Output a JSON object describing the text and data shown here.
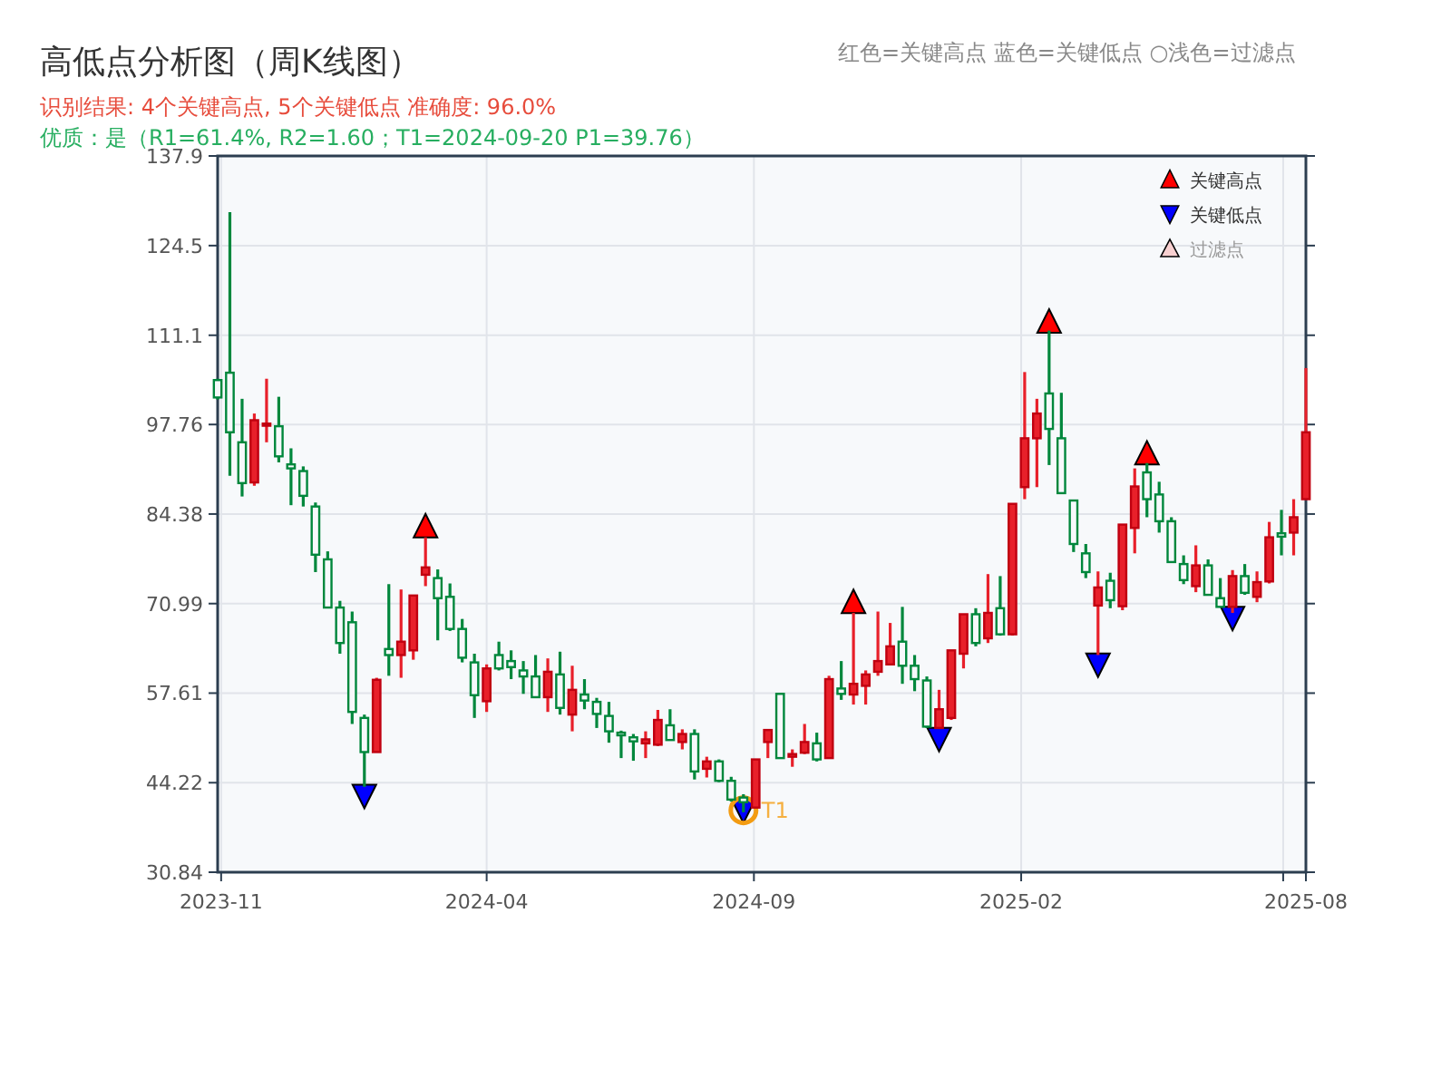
{
  "chart_data": {
    "type": "candlestick",
    "title": "高低点分析图（周K线图）",
    "subtitle": "识别结果: 4个关键高点, 5个关键低点  准确度: 96.0%",
    "annotations": [
      "优质：是（R1=61.4%, R2=1.60；T1=2024-09-20 P1=39.76）",
      "红色=关键高点     蓝色=关键低点     ○浅色=过滤点",
      "过滤点",
      {
        "text": "T1",
        "x": "2024-08-26",
        "y": 40.1
      }
    ],
    "x": [
      "2023-10-30",
      "2023-11-06",
      "2023-11-13",
      "2023-11-20",
      "2023-11-27",
      "2023-12-04",
      "2023-12-11",
      "2023-12-18",
      "2023-12-25",
      "2024-01-01",
      "2024-01-08",
      "2024-01-15",
      "2024-01-22",
      "2024-01-29",
      "2024-02-05",
      "2024-02-12",
      "2024-02-19",
      "2024-02-26",
      "2024-03-04",
      "2024-03-11",
      "2024-03-18",
      "2024-03-25",
      "2024-04-01",
      "2024-04-08",
      "2024-04-15",
      "2024-04-22",
      "2024-04-29",
      "2024-05-06",
      "2024-05-13",
      "2024-05-20",
      "2024-05-27",
      "2024-06-03",
      "2024-06-10",
      "2024-06-17",
      "2024-06-24",
      "2024-07-01",
      "2024-07-08",
      "2024-07-15",
      "2024-07-22",
      "2024-07-29",
      "2024-08-05",
      "2024-08-12",
      "2024-08-19",
      "2024-08-26",
      "2024-09-02",
      "2024-09-09",
      "2024-09-16",
      "2024-09-23",
      "2024-09-30",
      "2024-10-07",
      "2024-10-14",
      "2024-10-21",
      "2024-10-28",
      "2024-11-04",
      "2024-11-11",
      "2024-11-18",
      "2024-11-25",
      "2024-12-02",
      "2024-12-09",
      "2024-12-16",
      "2024-12-23",
      "2024-12-30",
      "2025-01-06",
      "2025-01-13",
      "2025-01-20",
      "2025-01-27",
      "2025-02-03",
      "2025-02-10",
      "2025-02-17",
      "2025-02-24",
      "2025-03-03",
      "2025-03-10",
      "2025-03-17",
      "2025-03-24",
      "2025-03-31",
      "2025-04-07",
      "2025-04-14",
      "2025-04-21",
      "2025-04-28",
      "2025-05-05",
      "2025-05-12",
      "2025-05-19",
      "2025-05-26",
      "2025-06-02",
      "2025-06-09",
      "2025-06-16",
      "2025-06-23",
      "2025-06-30",
      "2025-07-07",
      "2025-07-14"
    ],
    "ohlc": [
      [
        104.4,
        104.6,
        101.5,
        101.8
      ],
      [
        105.5,
        129.5,
        90.1,
        96.6
      ],
      [
        95.1,
        101.6,
        87.0,
        89.0
      ],
      [
        89.1,
        99.4,
        88.6,
        98.4
      ],
      [
        97.6,
        104.6,
        95.1,
        97.9
      ],
      [
        97.5,
        101.9,
        92.1,
        93.0
      ],
      [
        91.8,
        94.2,
        85.7,
        91.2
      ],
      [
        90.8,
        91.5,
        85.5,
        87.1
      ],
      [
        85.5,
        86.1,
        75.7,
        78.3
      ],
      [
        77.6,
        78.8,
        70.4,
        70.4
      ],
      [
        70.4,
        71.4,
        63.5,
        65.1
      ],
      [
        68.2,
        69.8,
        53.0,
        54.8
      ],
      [
        53.9,
        54.4,
        43.6,
        48.8
      ],
      [
        48.8,
        59.9,
        48.8,
        59.6
      ],
      [
        64.2,
        73.9,
        60.2,
        63.3
      ],
      [
        63.3,
        73.1,
        59.9,
        65.3
      ],
      [
        64.0,
        72.2,
        62.6,
        72.2
      ],
      [
        75.3,
        80.9,
        73.6,
        76.4
      ],
      [
        74.8,
        76.1,
        65.5,
        71.8
      ],
      [
        72.0,
        74.0,
        66.9,
        67.2
      ],
      [
        67.2,
        68.7,
        62.2,
        62.9
      ],
      [
        62.2,
        63.5,
        53.9,
        57.3
      ],
      [
        56.4,
        61.9,
        54.8,
        61.3
      ],
      [
        63.3,
        65.3,
        61.0,
        61.3
      ],
      [
        62.4,
        64.0,
        59.7,
        61.5
      ],
      [
        61.0,
        62.4,
        57.5,
        60.1
      ],
      [
        60.1,
        63.3,
        57.0,
        57.0
      ],
      [
        57.0,
        62.8,
        54.8,
        60.8
      ],
      [
        60.4,
        63.8,
        54.4,
        55.4
      ],
      [
        54.4,
        61.7,
        51.9,
        58.1
      ],
      [
        57.4,
        59.7,
        55.2,
        56.5
      ],
      [
        56.3,
        56.9,
        52.4,
        54.5
      ],
      [
        54.2,
        56.3,
        50.2,
        51.9
      ],
      [
        51.7,
        52.0,
        47.9,
        51.3
      ],
      [
        51.0,
        51.5,
        47.5,
        50.4
      ],
      [
        50.1,
        51.9,
        47.9,
        50.7
      ],
      [
        49.9,
        55.1,
        49.7,
        53.6
      ],
      [
        52.8,
        55.2,
        50.6,
        50.6
      ],
      [
        50.3,
        52.2,
        49.2,
        51.5
      ],
      [
        51.5,
        52.2,
        44.7,
        45.9
      ],
      [
        46.3,
        48.1,
        45.0,
        47.4
      ],
      [
        47.4,
        47.7,
        44.3,
        44.5
      ],
      [
        44.5,
        45.1,
        41.4,
        41.7
      ],
      [
        42.0,
        42.5,
        39.8,
        41.3
      ],
      [
        40.5,
        47.7,
        40.5,
        47.7
      ],
      [
        50.3,
        52.1,
        47.9,
        52.1
      ],
      [
        57.5,
        57.5,
        47.9,
        47.9
      ],
      [
        48.1,
        49.2,
        46.6,
        48.5
      ],
      [
        48.7,
        53.0,
        48.5,
        50.3
      ],
      [
        50.1,
        51.7,
        47.4,
        47.7
      ],
      [
        47.9,
        60.2,
        47.9,
        59.7
      ],
      [
        58.3,
        62.4,
        56.6,
        57.5
      ],
      [
        57.4,
        69.6,
        55.9,
        59.0
      ],
      [
        58.7,
        61.0,
        55.9,
        60.4
      ],
      [
        60.8,
        69.8,
        60.2,
        62.4
      ],
      [
        61.9,
        68.1,
        61.9,
        64.6
      ],
      [
        65.3,
        70.5,
        59.0,
        61.7
      ],
      [
        61.7,
        63.3,
        57.9,
        59.7
      ],
      [
        59.5,
        60.1,
        52.4,
        52.6
      ],
      [
        52.4,
        58.1,
        52.4,
        55.2
      ],
      [
        53.9,
        64.0,
        53.6,
        64.0
      ],
      [
        63.5,
        69.4,
        61.3,
        69.4
      ],
      [
        69.4,
        70.3,
        64.6,
        65.1
      ],
      [
        65.8,
        75.4,
        65.1,
        69.6
      ],
      [
        70.3,
        75.1,
        66.2,
        66.4
      ],
      [
        66.4,
        85.9,
        66.2,
        85.9
      ],
      [
        88.4,
        105.6,
        86.6,
        95.7
      ],
      [
        95.7,
        101.6,
        88.4,
        99.4
      ],
      [
        102.4,
        111.8,
        91.7,
        97.1
      ],
      [
        95.7,
        102.5,
        87.5,
        87.5
      ],
      [
        86.4,
        86.4,
        78.7,
        79.9
      ],
      [
        78.5,
        79.9,
        74.8,
        75.7
      ],
      [
        70.7,
        75.8,
        63.3,
        73.4
      ],
      [
        74.4,
        75.6,
        70.3,
        71.5
      ],
      [
        70.6,
        82.8,
        70.0,
        82.8
      ],
      [
        82.3,
        91.2,
        78.5,
        88.5
      ],
      [
        90.6,
        92.0,
        83.9,
        86.6
      ],
      [
        87.3,
        89.2,
        81.6,
        83.3
      ],
      [
        83.3,
        83.9,
        77.2,
        77.2
      ],
      [
        76.9,
        78.2,
        73.9,
        74.5
      ],
      [
        73.6,
        79.7,
        72.7,
        76.7
      ],
      [
        76.7,
        77.6,
        72.3,
        72.3
      ],
      [
        71.8,
        74.8,
        70.5,
        70.5
      ],
      [
        70.5,
        76.0,
        69.6,
        75.1
      ],
      [
        75.1,
        76.9,
        72.3,
        72.6
      ],
      [
        72.0,
        75.8,
        71.2,
        74.2
      ],
      [
        74.3,
        83.2,
        74.0,
        80.9
      ],
      [
        81.5,
        85.0,
        78.2,
        81.0
      ],
      [
        81.6,
        86.6,
        78.2,
        83.9
      ],
      [
        86.6,
        106.2,
        86.6,
        96.6
      ]
    ],
    "colors": [
      "#00873c",
      "#00873c",
      "#00873c",
      "#e8202a",
      "#e8202a",
      "#00873c",
      "#00873c",
      "#00873c",
      "#00873c",
      "#00873c",
      "#00873c",
      "#00873c",
      "#00873c",
      "#e8202a",
      "#00873c",
      "#e8202a",
      "#e8202a",
      "#e8202a",
      "#00873c",
      "#00873c",
      "#00873c",
      "#00873c",
      "#e8202a",
      "#00873c",
      "#00873c",
      "#00873c",
      "#00873c",
      "#e8202a",
      "#00873c",
      "#e8202a",
      "#00873c",
      "#00873c",
      "#00873c",
      "#00873c",
      "#00873c",
      "#e8202a",
      "#e8202a",
      "#00873c",
      "#e8202a",
      "#00873c",
      "#e8202a",
      "#00873c",
      "#00873c",
      "#00873c",
      "#e8202a",
      "#e8202a",
      "#00873c",
      "#e8202a",
      "#e8202a",
      "#00873c",
      "#e8202a",
      "#00873c",
      "#e8202a",
      "#e8202a",
      "#e8202a",
      "#e8202a",
      "#00873c",
      "#00873c",
      "#00873c",
      "#e8202a",
      "#e8202a",
      "#e8202a",
      "#00873c",
      "#e8202a",
      "#00873c",
      "#e8202a",
      "#e8202a",
      "#e8202a",
      "#00873c",
      "#00873c",
      "#00873c",
      "#00873c",
      "#e8202a",
      "#00873c",
      "#e8202a",
      "#e8202a",
      "#00873c",
      "#00873c",
      "#00873c",
      "#00873c",
      "#e8202a",
      "#00873c",
      "#00873c",
      "#e8202a",
      "#00873c",
      "#e8202a",
      "#e8202a",
      "#00873c",
      "#e8202a",
      "#e8202a"
    ],
    "series": [
      {
        "name": "关键高点",
        "type": "scatter",
        "marker": "triangle",
        "color": "#ff0000",
        "x": [
          "2024-02-26",
          "2024-10-28",
          "2025-02-17",
          "2025-04-14"
        ],
        "values": [
          82.5,
          71.2,
          113.1,
          93.4
        ]
      },
      {
        "name": "关键低点",
        "type": "scatter",
        "marker": "triangle",
        "color": "#0000ff",
        "x": [
          "2024-01-22",
          "2024-08-26",
          "2024-12-16",
          "2025-03-17",
          "2025-06-02"
        ],
        "values": [
          42.3,
          40.1,
          50.8,
          61.9,
          68.9
        ]
      },
      {
        "type": "scatter",
        "marker": "circle",
        "color": "#f39c12",
        "x": [
          "2024-08-26"
        ],
        "values": [
          40.1
        ]
      }
    ],
    "xlim": [
      "2023-10-30",
      "2025-07-14"
    ],
    "xticks": [
      {
        "value": "2023-11-01",
        "label": "2023-11"
      },
      {
        "value": "2024-04-01",
        "label": "2024-04"
      },
      {
        "value": "2024-09-01",
        "label": "2024-09"
      },
      {
        "value": "2025-02-01",
        "label": "2025-02"
      },
      {
        "value": "2025-07-01",
        "label": null
      },
      {
        "value": "2025-07-14",
        "label": "2025-08"
      }
    ],
    "ylim": [
      30.84,
      137.9
    ],
    "yticks": [
      30.84,
      44.22,
      57.61,
      70.99,
      84.38,
      97.76,
      111.1,
      124.5,
      137.9
    ],
    "grid": true,
    "legend": "top right"
  }
}
